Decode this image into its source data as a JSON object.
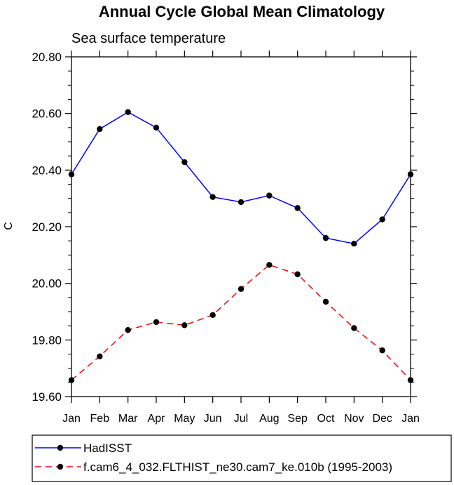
{
  "chart_data": {
    "type": "line",
    "title": "Annual Cycle Global Mean Climatology",
    "subtitle": "Sea surface temperature",
    "xlabel": "",
    "ylabel": "C",
    "categories": [
      "Jan",
      "Feb",
      "Mar",
      "Apr",
      "May",
      "Jun",
      "Jul",
      "Aug",
      "Sep",
      "Oct",
      "Nov",
      "Dec",
      "Jan"
    ],
    "ylim": [
      19.6,
      20.8
    ],
    "yticks": [
      "19.60",
      "19.80",
      "20.00",
      "20.20",
      "20.40",
      "20.60",
      "20.80"
    ],
    "legend_position": "bottom",
    "series": [
      {
        "name": "HadISST",
        "color": "#0000ff",
        "dash": "solid",
        "values": [
          20.385,
          20.545,
          20.605,
          20.55,
          20.428,
          20.305,
          20.287,
          20.31,
          20.266,
          20.16,
          20.14,
          20.226,
          20.385
        ]
      },
      {
        "name": "f.cam6_4_032.FLTHIST_ne30.cam7_ke.010b (1995-2003)",
        "color": "#ff0000",
        "dash": "dashed",
        "values": [
          19.658,
          19.742,
          19.835,
          19.863,
          19.852,
          19.888,
          19.98,
          20.065,
          20.032,
          19.935,
          19.842,
          19.763,
          19.658
        ]
      }
    ]
  }
}
